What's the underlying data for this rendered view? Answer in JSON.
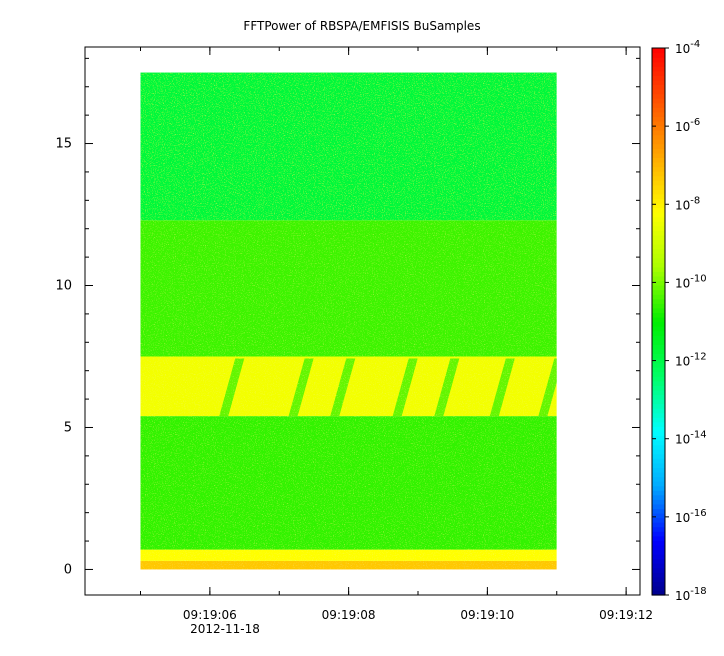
{
  "chart_data": {
    "type": "heatmap",
    "title": "FFTPower of RBSPA/EMFISIS  BuSamples",
    "xlabel": "",
    "ylabel": "",
    "date_label": "2012-11-18",
    "x_ticks": [
      "09:19:06",
      "09:19:08",
      "09:19:10",
      "09:19:12"
    ],
    "x_range": [
      "09:19:04.2",
      "09:19:12.2"
    ],
    "data_time_range": [
      "09:19:05.0",
      "09:19:11.0"
    ],
    "y_ticks": [
      0,
      5,
      10,
      15
    ],
    "ylim": [
      -0.9,
      18.4
    ],
    "data_y_range": [
      0,
      17.5
    ],
    "colorbar": {
      "scale": "log",
      "range": [
        1e-18,
        0.0001
      ],
      "tick_bases": [
        "10",
        "10",
        "10",
        "10",
        "10",
        "10",
        "10",
        "10"
      ],
      "tick_exponents": [
        "-18",
        "-16",
        "-14",
        "-12",
        "-10",
        "-8",
        "-6",
        "-4"
      ],
      "colors": [
        "#00008b",
        "#0000ff",
        "#00aaff",
        "#00ffff",
        "#00ff66",
        "#00ee00",
        "#aaff00",
        "#ffff00",
        "#ffaa00",
        "#ff5500",
        "#ff0000"
      ]
    },
    "bands": [
      {
        "y_from": 0,
        "y_to": 0.3,
        "log_power": -7.3
      },
      {
        "y_from": 0.3,
        "y_to": 0.7,
        "log_power": -8.2
      },
      {
        "y_from": 0.7,
        "y_to": 5.4,
        "log_power": -10.6
      },
      {
        "y_from": 5.4,
        "y_to": 7.5,
        "log_power": -8.4
      },
      {
        "y_from": 7.5,
        "y_to": 12.3,
        "log_power": -10.5
      },
      {
        "y_from": 12.3,
        "y_to": 17.5,
        "log_power": -11.8
      }
    ],
    "chorus_element_times": [
      "09:19:06.2",
      "09:19:07.2",
      "09:19:07.8",
      "09:19:08.7",
      "09:19:09.3",
      "09:19:10.1",
      "09:19:10.8"
    ]
  }
}
